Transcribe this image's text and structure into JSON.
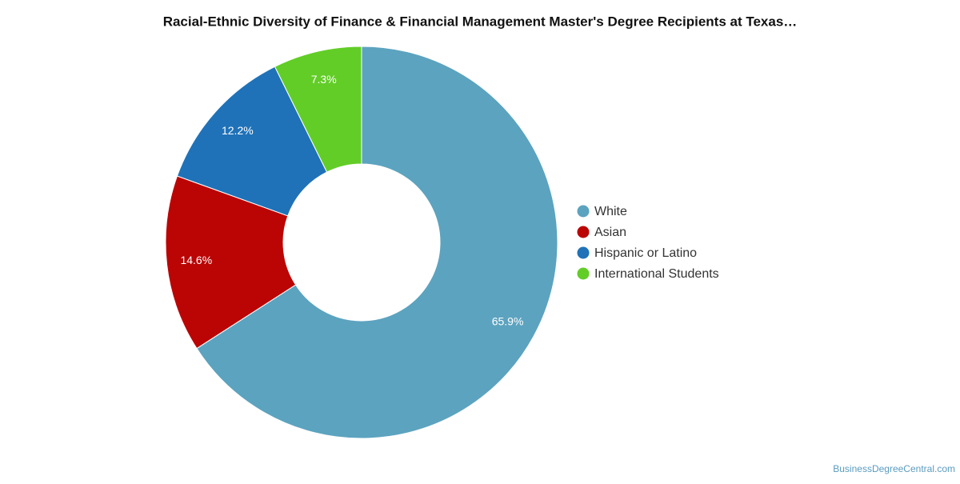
{
  "chart_data": {
    "type": "donut",
    "title": "Racial-Ethnic Diversity of Finance & Financial Management Master's Degree Recipients at Texas…",
    "categories": [
      "White",
      "Asian",
      "Hispanic or Latino",
      "International Students"
    ],
    "values": [
      65.9,
      14.6,
      12.2,
      7.3
    ],
    "value_labels": [
      "65.9%",
      "14.6%",
      "12.2%",
      "7.3%"
    ],
    "colors": [
      "#5ca3bf",
      "#bb0505",
      "#1f72b8",
      "#62cd27"
    ],
    "legend": "right",
    "source": "BusinessDegreeCentral.com"
  }
}
